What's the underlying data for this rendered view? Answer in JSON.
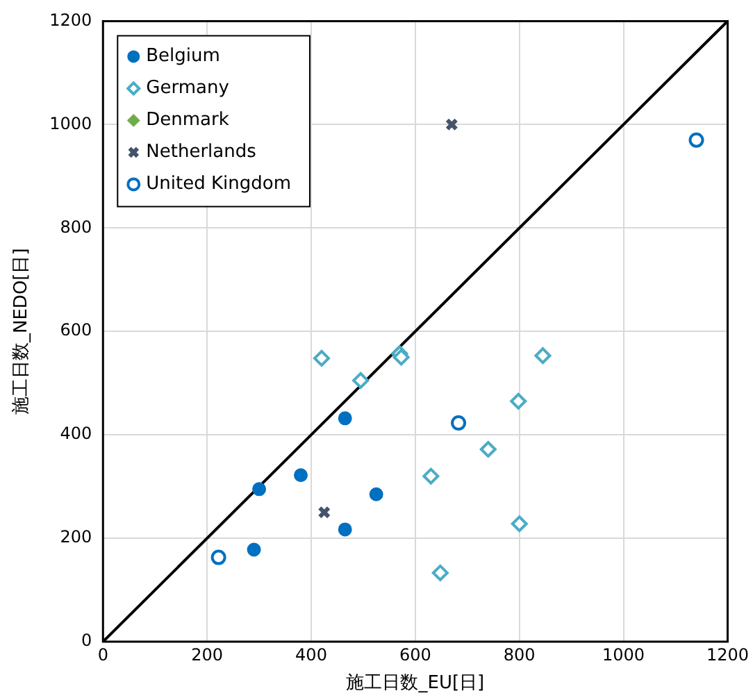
{
  "chart_data": {
    "type": "scatter",
    "xlabel": "施工日数_EU[日]",
    "ylabel": "施工日数_NEDO[日]",
    "xlim": [
      0,
      1200
    ],
    "ylim": [
      0,
      1200
    ],
    "xticks": [
      0,
      200,
      400,
      600,
      800,
      1000,
      1200
    ],
    "yticks": [
      0,
      200,
      400,
      600,
      800,
      1000,
      1200
    ],
    "grid": true,
    "legend": "top left",
    "series": [
      {
        "name": "Belgium",
        "color": "#0070c0",
        "marker": "circle",
        "x": [
          290,
          300,
          380,
          465,
          465,
          525
        ],
        "values": [
          178,
          295,
          322,
          432,
          217,
          285
        ]
      },
      {
        "name": "Germany",
        "color": "#4bacc6",
        "marker": "diamond",
        "x": [
          420,
          495,
          570,
          573,
          630,
          648,
          740,
          798,
          800,
          845
        ],
        "values": [
          548,
          505,
          557,
          550,
          320,
          133,
          372,
          465,
          228,
          553
        ]
      },
      {
        "name": "Denmark",
        "color": "#70ad47",
        "marker": "diamond"
      },
      {
        "name": "Netherlands",
        "color": "#44546a",
        "marker": "cross",
        "x": [
          425,
          670
        ],
        "values": [
          250,
          1000
        ]
      },
      {
        "name": "United Kingdom",
        "color": "#0070c0",
        "marker": "circle",
        "x": [
          222,
          683,
          1140
        ],
        "values": [
          163,
          423,
          970
        ]
      },
      {
        "type": "line",
        "color": "#000000",
        "marker": "none",
        "x": [
          0,
          1200
        ],
        "values": [
          0,
          1200
        ]
      }
    ]
  }
}
